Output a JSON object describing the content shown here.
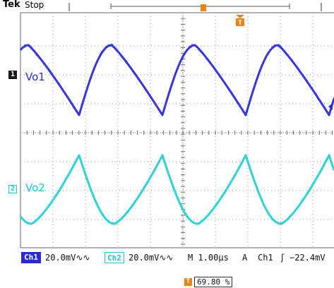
{
  "header": {
    "brand": "Tek",
    "state": "Stop"
  },
  "channels": [
    {
      "id": "1",
      "label": "Vo1",
      "color": "#2a2ad2"
    },
    {
      "id": "2",
      "label": "Vo2",
      "color": "#22c8d0"
    }
  ],
  "trigger_marker": {
    "icon": "T",
    "color": "#e8841c"
  },
  "status_bar": {
    "ch1_tag": "Ch1",
    "ch1_scale": "20.0mV∿∿",
    "ch2_tag": "Ch2",
    "ch2_scale": "20.0mV∿∿",
    "timebase": "M 1.00µs",
    "trigger_mode": "A",
    "trigger_source": "Ch1",
    "trigger_slope": "ʃ",
    "trigger_level": "−22.4mV"
  },
  "trigger_position": {
    "icon": "T",
    "value": "69.80 %"
  }
}
